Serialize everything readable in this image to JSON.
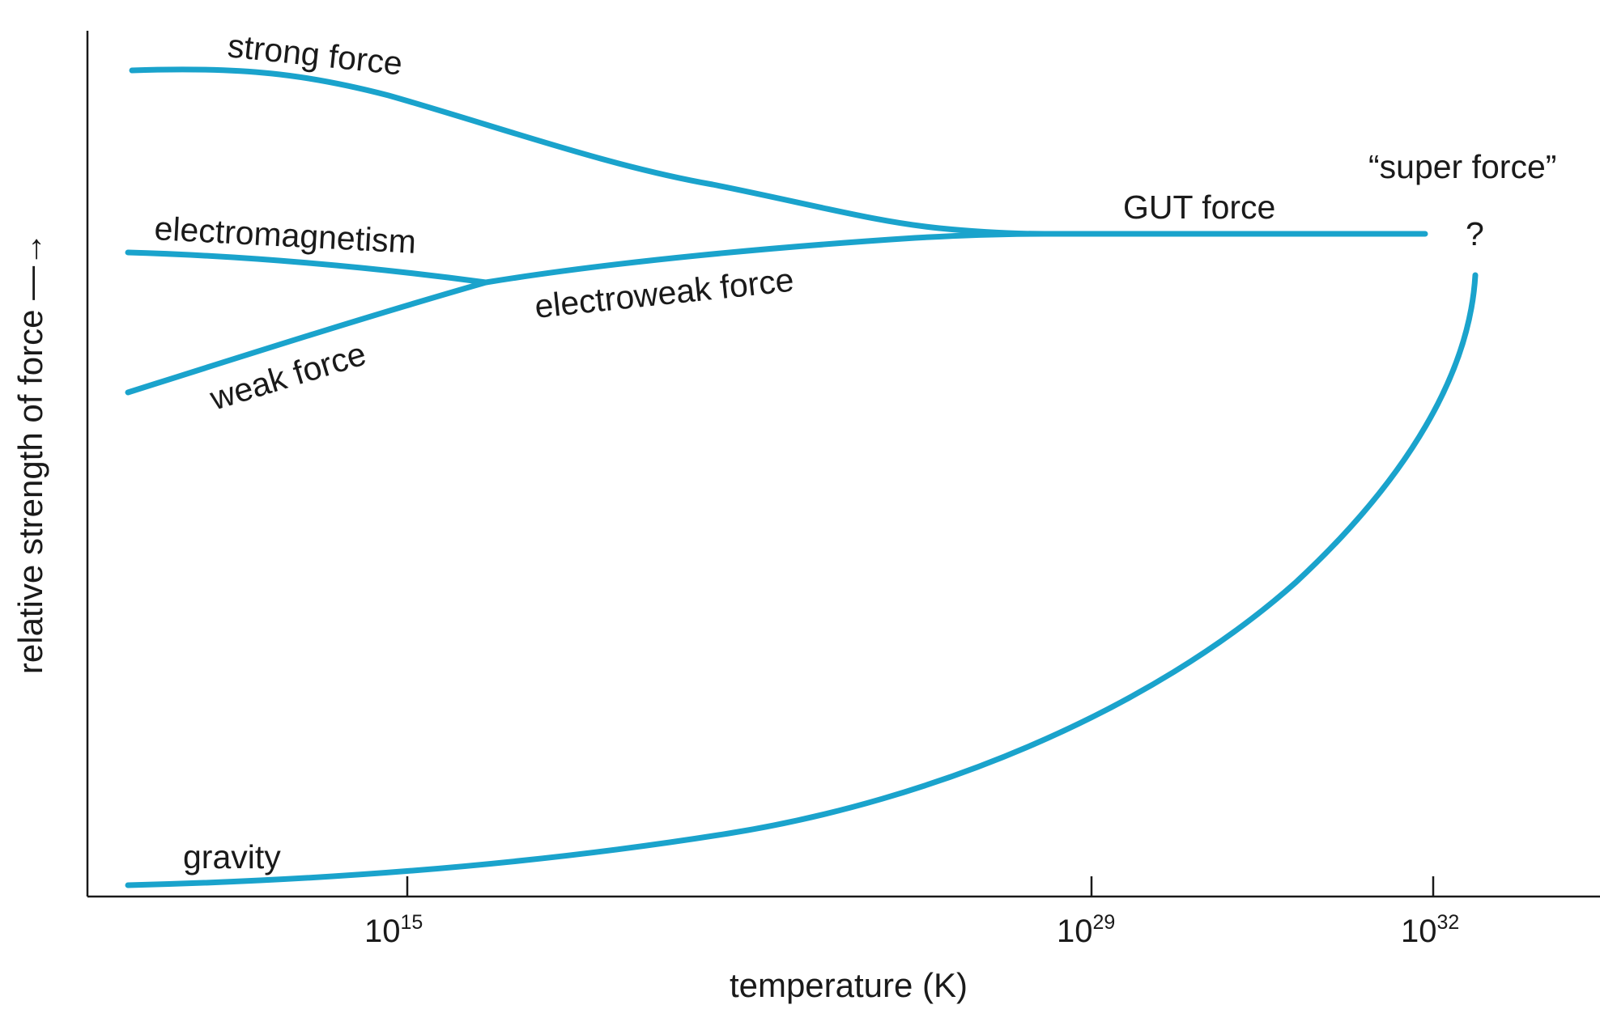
{
  "chart_data": {
    "type": "line",
    "title": "",
    "xlabel": "temperature (K)",
    "ylabel": "relative strength of force —→",
    "x_scale": "log",
    "x_ticks": [
      {
        "base": "10",
        "exp": "15",
        "value": 1000000000000000.0
      },
      {
        "base": "10",
        "exp": "29",
        "value": 1e+29
      },
      {
        "base": "10",
        "exp": "32",
        "value": 1e+32
      }
    ],
    "grid": false,
    "legend": "none",
    "colors": {
      "curves": "#1aa3cc",
      "axes": "#1a1a1a",
      "text": "#1a1a1a"
    },
    "series": [
      {
        "name": "strong force",
        "points": [
          [
            1000000000.0,
            0.95
          ],
          [
            10000000000000.0,
            0.94
          ],
          [
            1e+17,
            0.84
          ],
          [
            1e+21,
            0.75
          ],
          [
            1e+25,
            0.71
          ],
          [
            1e+27,
            0.705
          ]
        ]
      },
      {
        "name": "electromagnetism",
        "points": [
          [
            1000000000.0,
            0.74
          ],
          [
            10000000000000.0,
            0.72
          ],
          [
            1e+16,
            0.7
          ]
        ]
      },
      {
        "name": "weak force",
        "points": [
          [
            1000000000.0,
            0.58
          ],
          [
            1000000000000.0,
            0.63
          ],
          [
            1e+16,
            0.7
          ]
        ]
      },
      {
        "name": "electroweak force",
        "points": [
          [
            1e+16,
            0.7
          ],
          [
            1e+22,
            0.72
          ],
          [
            1e+27,
            0.705
          ]
        ]
      },
      {
        "name": "GUT force",
        "points": [
          [
            1e+27,
            0.705
          ],
          [
            1e+32,
            0.705
          ]
        ]
      },
      {
        "name": "gravity",
        "points": [
          [
            1000000000.0,
            0.01
          ],
          [
            1000000000000000.0,
            0.02
          ],
          [
            1e+22,
            0.07
          ],
          [
            1e+29,
            0.2
          ],
          [
            1e+31,
            0.35
          ],
          [
            1.2e+32,
            0.65
          ]
        ]
      }
    ],
    "annotations": [
      {
        "text": "“super force”",
        "x": 1.5e+32,
        "y": 0.84
      },
      {
        "text": "?",
        "x": 1.5e+32,
        "y": 0.76
      }
    ]
  }
}
